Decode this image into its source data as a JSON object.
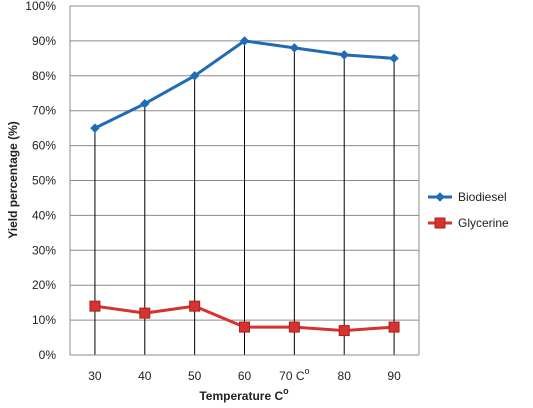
{
  "chart_data": {
    "type": "line",
    "xlabel": "Temperature C",
    "xlabel_superscript": "o",
    "ylabel": "Yield percentage (%)",
    "categories": [
      30,
      40,
      50,
      60,
      70,
      80,
      90
    ],
    "x_tick_labels": [
      "30",
      "40",
      "50",
      "60",
      "70 C",
      "80",
      "90"
    ],
    "x_tick_superscripts": [
      "",
      "",
      "",
      "",
      "o",
      "",
      ""
    ],
    "ylim": [
      0,
      100
    ],
    "y_ticks": [
      0,
      10,
      20,
      30,
      40,
      50,
      60,
      70,
      80,
      90,
      100
    ],
    "y_tick_labels": [
      "0%",
      "10%",
      "20%",
      "30%",
      "40%",
      "50%",
      "60%",
      "70%",
      "80%",
      "90%",
      "100%"
    ],
    "grid": true,
    "legend_position": "right",
    "series": [
      {
        "name": "Biodiesel",
        "values": [
          65,
          72,
          80,
          90,
          88,
          86,
          85
        ],
        "color": "#1f6bb5",
        "marker": "diamond"
      },
      {
        "name": "Glycerine",
        "values": [
          14,
          12,
          14,
          8,
          8,
          7,
          8
        ],
        "color": "#d6322f",
        "marker": "square"
      }
    ]
  }
}
